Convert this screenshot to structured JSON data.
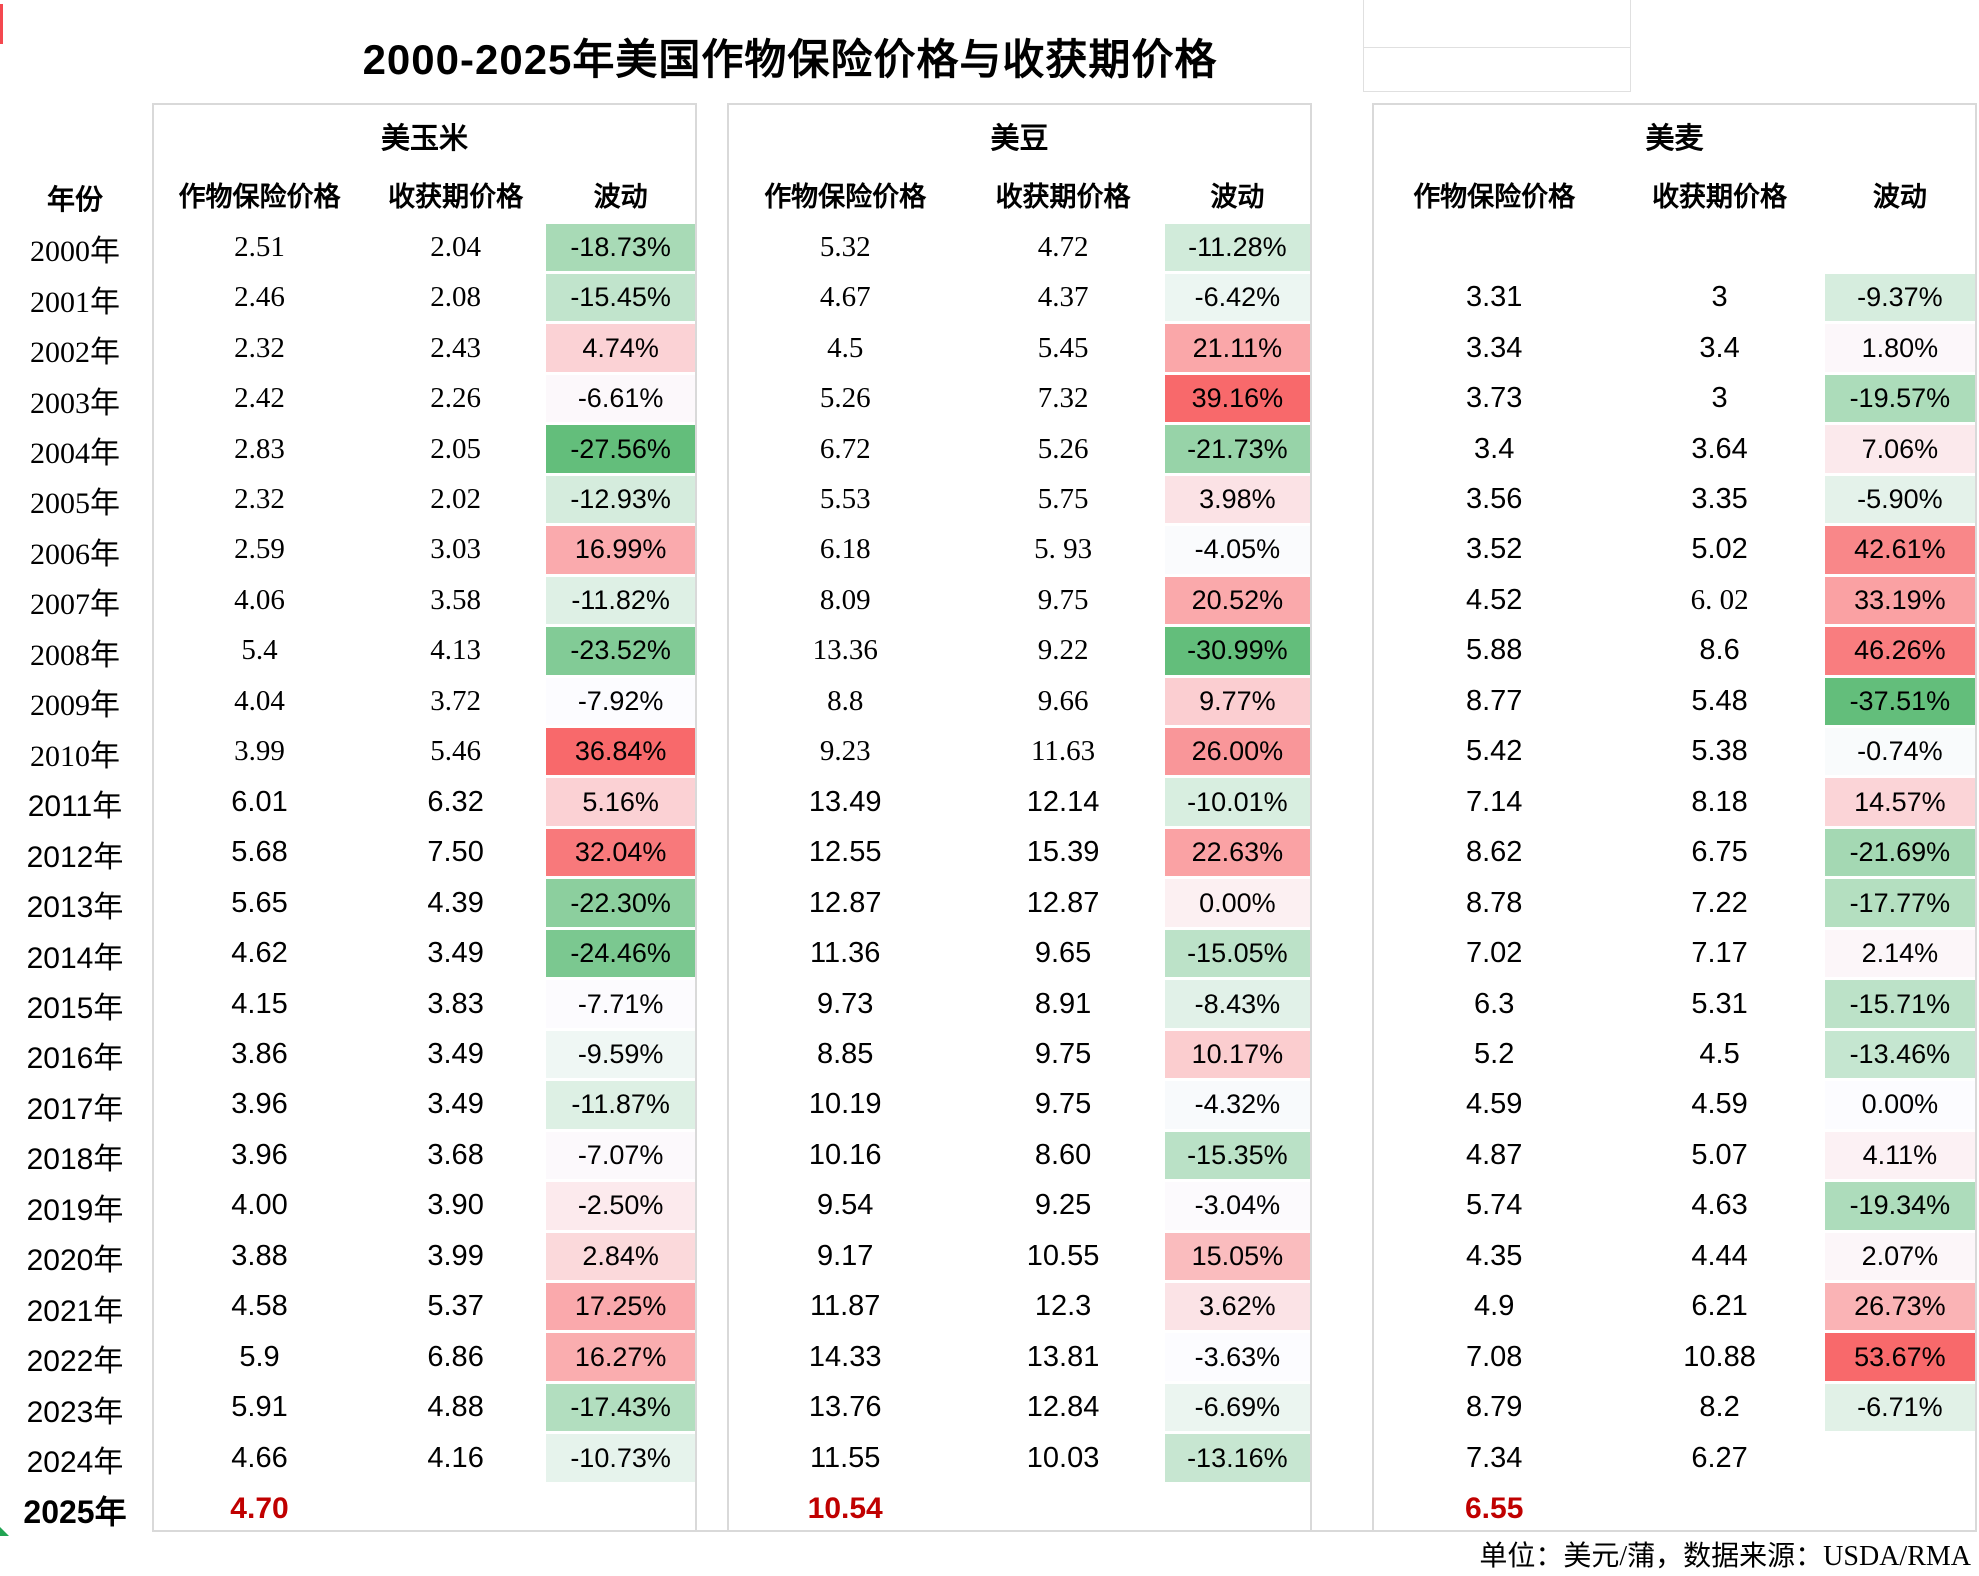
{
  "title": "2000-2025年美国作物保险价格与收获期价格",
  "footer_note": "单位：美元/蒲，数据来源：USDA/RMA",
  "columns": {
    "year": "年份",
    "insurance": "作物保险价格",
    "harvest": "收获期价格",
    "volatility": "波动"
  },
  "colors": {
    "scale_max_red": "#F8696B",
    "scale_mid_white": "#FCFCFF",
    "scale_min_green": "#63BE7B",
    "highlight_red": "#C00000",
    "border_gray": "#D9D9D9"
  },
  "chart_data": {
    "type": "table",
    "years": [
      "2000年",
      "2001年",
      "2002年",
      "2003年",
      "2004年",
      "2005年",
      "2006年",
      "2007年",
      "2008年",
      "2009年",
      "2010年",
      "2011年",
      "2012年",
      "2013年",
      "2014年",
      "2015年",
      "2016年",
      "2017年",
      "2018年",
      "2019年",
      "2020年",
      "2021年",
      "2022年",
      "2023年",
      "2024年",
      "2025年"
    ],
    "series": [
      {
        "name": "美玉米",
        "insurance": [
          "2.51",
          "2.46",
          "2.32",
          "2.42",
          "2.83",
          "2.32",
          "2.59",
          "4.06",
          "5.4",
          "4.04",
          "3.99",
          "6.01",
          "5.68",
          "5.65",
          "4.62",
          "4.15",
          "3.86",
          "3.96",
          "3.96",
          "4.00",
          "3.88",
          "4.58",
          "5.9",
          "5.91",
          "4.66",
          "4.70"
        ],
        "harvest": [
          "2.04",
          "2.08",
          "2.43",
          "2.26",
          "2.05",
          "2.02",
          "3.03",
          "3.58",
          "4.13",
          "3.72",
          "5.46",
          "6.32",
          "7.50",
          "4.39",
          "3.49",
          "3.83",
          "3.49",
          "3.49",
          "3.68",
          "3.90",
          "3.99",
          "5.37",
          "6.86",
          "4.88",
          "4.16",
          null
        ],
        "volatility_pct": [
          -18.73,
          -15.45,
          4.74,
          -6.61,
          -27.56,
          -12.93,
          16.99,
          -11.82,
          -23.52,
          -7.92,
          36.84,
          5.16,
          32.04,
          -22.3,
          -24.46,
          -7.71,
          -9.59,
          -11.87,
          -7.07,
          -2.5,
          2.84,
          17.25,
          16.27,
          -17.43,
          -10.73,
          null
        ]
      },
      {
        "name": "美豆",
        "insurance": [
          "5.32",
          "4.67",
          "4.5",
          "5.26",
          "6.72",
          "5.53",
          "6.18",
          "8.09",
          "13.36",
          "8.8",
          "9.23",
          "13.49",
          "12.55",
          "12.87",
          "11.36",
          "9.73",
          "8.85",
          "10.19",
          "10.16",
          "9.54",
          "9.17",
          "11.87",
          "14.33",
          "13.76",
          "11.55",
          "10.54"
        ],
        "harvest": [
          "4.72",
          "4.37",
          "5.45",
          "7.32",
          "5.26",
          "5.75",
          "5. 93",
          "9.75",
          "9.22",
          "9.66",
          "11.63",
          "12.14",
          "15.39",
          "12.87",
          "9.65",
          "8.91",
          "9.75",
          "9.75",
          "8.60",
          "9.25",
          "10.55",
          "12.3",
          "13.81",
          "12.84",
          "10.03",
          null
        ],
        "volatility_pct": [
          -11.28,
          -6.42,
          21.11,
          39.16,
          -21.73,
          3.98,
          -4.05,
          20.52,
          -30.99,
          9.77,
          26.0,
          -10.01,
          22.63,
          0.0,
          -15.05,
          -8.43,
          10.17,
          -4.32,
          -15.35,
          -3.04,
          15.05,
          3.62,
          -3.63,
          -6.69,
          -13.16,
          null
        ]
      },
      {
        "name": "美麦",
        "insurance": [
          null,
          "3.31",
          "3.34",
          "3.73",
          "3.4",
          "3.56",
          "3.52",
          "4.52",
          "5.88",
          "8.77",
          "5.42",
          "7.14",
          "8.62",
          "8.78",
          "7.02",
          "6.3",
          "5.2",
          "4.59",
          "4.87",
          "5.74",
          "4.35",
          "4.9",
          "7.08",
          "8.79",
          "7.34",
          "6.55"
        ],
        "harvest": [
          null,
          "3",
          "3.4",
          "3",
          "3.64",
          "3.35",
          "5.02",
          "6. 02",
          "8.6",
          "5.48",
          "5.38",
          "8.18",
          "6.75",
          "7.22",
          "7.17",
          "5.31",
          "4.5",
          "4.59",
          "5.07",
          "4.63",
          "4.44",
          "6.21",
          "10.88",
          "8.2",
          "6.27",
          null
        ],
        "volatility_pct": [
          null,
          -9.37,
          1.8,
          -19.57,
          7.06,
          -5.9,
          42.61,
          33.19,
          46.26,
          -37.51,
          -0.74,
          14.57,
          -21.69,
          -17.77,
          2.14,
          -15.71,
          -13.46,
          0.0,
          4.11,
          -19.34,
          2.07,
          26.73,
          53.67,
          -6.71,
          null,
          null
        ]
      }
    ],
    "notes": {
      "highlight_year": "2025年",
      "highlight_values": [
        "4.70",
        "10.54",
        "6.55"
      ]
    }
  }
}
